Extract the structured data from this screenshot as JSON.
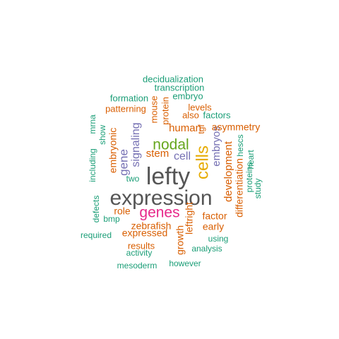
{
  "palette": {
    "teal": "#1b9e77",
    "orange": "#d95f02",
    "purple": "#7570b3",
    "magenta": "#e7298a",
    "green": "#66a61e",
    "gold": "#e6ab02",
    "gray": "#555555"
  },
  "words": [
    {
      "text": "lefty",
      "color": "gray"
    },
    {
      "text": "expression",
      "color": "gray"
    },
    {
      "text": "genes",
      "color": "magenta"
    },
    {
      "text": "nodal",
      "color": "green"
    },
    {
      "text": "cells",
      "color": "gold"
    },
    {
      "text": "cell",
      "color": "purple"
    },
    {
      "text": "human",
      "color": "orange"
    },
    {
      "text": "stem",
      "color": "orange"
    },
    {
      "text": "signaling",
      "color": "purple"
    },
    {
      "text": "gene",
      "color": "purple"
    },
    {
      "text": "embryonic",
      "color": "orange"
    },
    {
      "text": "embryos",
      "color": "purple"
    },
    {
      "text": "development",
      "color": "orange"
    },
    {
      "text": "asymmetry",
      "color": "orange"
    },
    {
      "text": "differentiation",
      "color": "orange"
    },
    {
      "text": "factor",
      "color": "orange"
    },
    {
      "text": "zebrafish",
      "color": "orange"
    },
    {
      "text": "expressed",
      "color": "orange"
    },
    {
      "text": "role",
      "color": "orange"
    },
    {
      "text": "results",
      "color": "orange"
    },
    {
      "text": "early",
      "color": "orange"
    },
    {
      "text": "leftright",
      "color": "orange"
    },
    {
      "text": "growth",
      "color": "orange"
    },
    {
      "text": "patterning",
      "color": "orange"
    },
    {
      "text": "levels",
      "color": "orange"
    },
    {
      "text": "protein",
      "color": "orange"
    },
    {
      "text": "mouse",
      "color": "orange"
    },
    {
      "text": "also",
      "color": "orange"
    },
    {
      "text": "factors",
      "color": "teal"
    },
    {
      "text": "tgf",
      "color": "orange"
    },
    {
      "text": "decidualization",
      "color": "teal"
    },
    {
      "text": "transcription",
      "color": "teal"
    },
    {
      "text": "formation",
      "color": "teal"
    },
    {
      "text": "embryo",
      "color": "teal"
    },
    {
      "text": "mrna",
      "color": "teal"
    },
    {
      "text": "show",
      "color": "teal"
    },
    {
      "text": "including",
      "color": "teal"
    },
    {
      "text": "two",
      "color": "teal"
    },
    {
      "text": "defects",
      "color": "teal"
    },
    {
      "text": "bmp",
      "color": "teal"
    },
    {
      "text": "required",
      "color": "teal"
    },
    {
      "text": "activity",
      "color": "teal"
    },
    {
      "text": "mesoderm",
      "color": "teal"
    },
    {
      "text": "however",
      "color": "teal"
    },
    {
      "text": "analysis",
      "color": "teal"
    },
    {
      "text": "using",
      "color": "teal"
    },
    {
      "text": "proteins",
      "color": "teal"
    },
    {
      "text": "hescs",
      "color": "teal"
    },
    {
      "text": "heart",
      "color": "teal"
    },
    {
      "text": "study",
      "color": "teal"
    }
  ]
}
